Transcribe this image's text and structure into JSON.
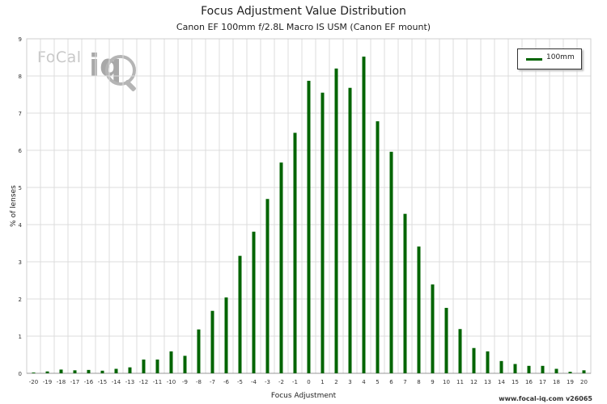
{
  "chart_data": {
    "type": "bar",
    "title": "Focus Adjustment Value Distribution",
    "subtitle": "Canon EF 100mm f/2.8L Macro IS USM (Canon EF mount)",
    "xlabel": "Focus Adjustment",
    "ylabel": "% of lenses",
    "ylim": [
      0,
      9
    ],
    "yticks": [
      0,
      1,
      2,
      3,
      4,
      5,
      6,
      7,
      8,
      9
    ],
    "grid": true,
    "legend_position": "top-right",
    "series": [
      {
        "name": "100mm",
        "color": "#006400",
        "x": [
          -20,
          -19,
          -18,
          -17,
          -16,
          -15,
          -14,
          -13,
          -12,
          -11,
          -10,
          -9,
          -8,
          -7,
          -6,
          -5,
          -4,
          -3,
          -2,
          -1,
          0,
          1,
          2,
          3,
          4,
          5,
          6,
          7,
          8,
          9,
          10,
          11,
          12,
          13,
          14,
          15,
          16,
          17,
          18,
          19,
          20
        ],
        "values": [
          0.02,
          0.05,
          0.1,
          0.08,
          0.09,
          0.07,
          0.12,
          0.16,
          0.37,
          0.37,
          0.59,
          0.47,
          1.18,
          1.68,
          2.04,
          3.16,
          3.81,
          4.69,
          5.67,
          6.47,
          7.87,
          7.55,
          8.2,
          7.68,
          8.52,
          6.78,
          5.96,
          4.29,
          3.41,
          2.39,
          1.76,
          1.19,
          0.68,
          0.59,
          0.33,
          0.25,
          0.2,
          0.2,
          0.12,
          0.04,
          0.08
        ]
      }
    ]
  },
  "legend": {
    "label": "100mm"
  },
  "logo": {
    "word": "FoCal",
    "mark": "iq",
    "icon": "magnifier-icon"
  },
  "footer": {
    "text": "www.focal-iq.com  v26065"
  }
}
